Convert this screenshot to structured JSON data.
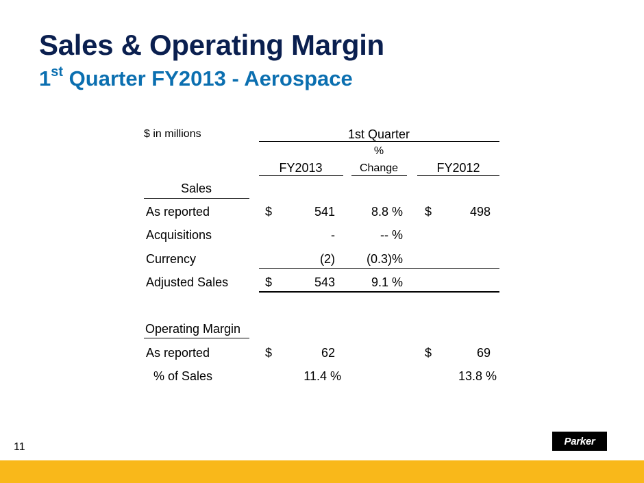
{
  "slide": {
    "title": "Sales & Operating Margin",
    "subtitle_prefix": "1",
    "subtitle_sup": "st",
    "subtitle_rest": " Quarter FY2013 - Aerospace",
    "page_number": "11",
    "logo_text": "Parker"
  },
  "table": {
    "units_label": "$  in millions",
    "period_header": "1st Quarter",
    "col_fy2013": "FY2013",
    "col_change_line1": "%",
    "col_change_line2": "Change",
    "col_fy2012": "FY2012",
    "sales_section": {
      "header": "Sales",
      "rows": [
        {
          "label": "As reported",
          "fy2013_dollar": "$",
          "fy2013": "541",
          "change": "8.8 %",
          "fy2012_dollar": "$",
          "fy2012": "498"
        },
        {
          "label": "Acquisitions",
          "fy2013_dollar": "",
          "fy2013": "-",
          "change": "-- %",
          "fy2012_dollar": "",
          "fy2012": ""
        },
        {
          "label": "Currency",
          "fy2013_dollar": "",
          "fy2013": "(2)",
          "change": "(0.3)%",
          "fy2012_dollar": "",
          "fy2012": ""
        },
        {
          "label": "Adjusted Sales",
          "fy2013_dollar": "$",
          "fy2013": "543",
          "change": "9.1 %",
          "fy2012_dollar": "",
          "fy2012": ""
        }
      ]
    },
    "margin_section": {
      "header": "Operating Margin",
      "rows": [
        {
          "label": "As reported",
          "fy2013_dollar": "$",
          "fy2013": "62",
          "fy2012_dollar": "$",
          "fy2012": "69"
        },
        {
          "label": "% of Sales",
          "fy2013": "11.4 %",
          "fy2012": "13.8 %"
        }
      ]
    }
  },
  "colors": {
    "title": "#0a1f4f",
    "subtitle": "#0b6fb0",
    "footer_bar": "#f9b81a"
  }
}
